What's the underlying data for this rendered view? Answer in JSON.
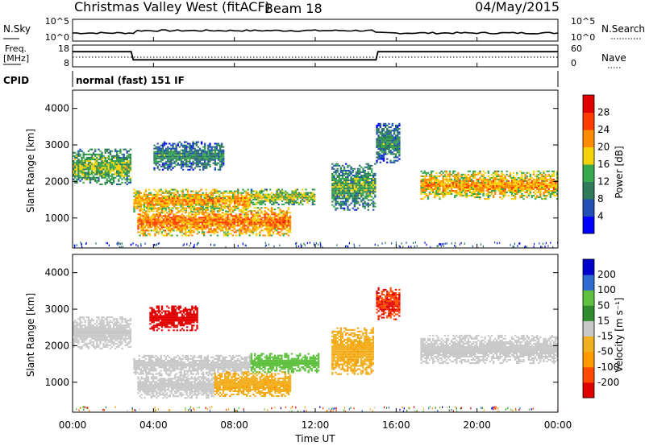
{
  "header": {
    "radar": "Christmas Valley West (fitACF)",
    "beam": "Beam 18",
    "date": "04/May/2015"
  },
  "top_panels": {
    "nsky_label": "N.Sky",
    "nsky_ticks": [
      "10^5",
      "10^0"
    ],
    "nsearch_label": "N.Search",
    "nsearch_ticks": [
      "10^5",
      "10^0"
    ],
    "freq_label_1": "Freq.",
    "freq_label_2": "[MHz]",
    "freq_ticks": [
      "18",
      "8"
    ],
    "nave_label": "Nave",
    "nave_ticks": [
      "60",
      "0"
    ],
    "cpid_label": "CPID",
    "cpid_value": "normal (fast) 151 IF"
  },
  "chart_data": [
    {
      "type": "heatmap",
      "name": "power",
      "ylabel": "Slant Range [km]",
      "yticks": [
        "4000",
        "3000",
        "2000",
        "1000"
      ],
      "ylim": [
        180,
        4500
      ],
      "colorbar_label": "Power [dB]",
      "colorbar_ticks": [
        "28",
        "24",
        "20",
        "16",
        "12",
        "8",
        "4"
      ],
      "colorbar_colors": [
        "#0000ff",
        "#2251b5",
        "#2f7a5a",
        "#38a84c",
        "#f5d20a",
        "#ff8c00",
        "#ff3b00",
        "#e00000"
      ],
      "bands": [
        {
          "t0": 0.0,
          "t1": 2.9,
          "r0": 1900,
          "r1": 2900,
          "level": 14
        },
        {
          "t0": 3.0,
          "t1": 8.8,
          "r0": 1150,
          "r1": 1800,
          "level": 20
        },
        {
          "t0": 3.2,
          "t1": 10.8,
          "r0": 500,
          "r1": 1300,
          "level": 22
        },
        {
          "t0": 4.0,
          "t1": 7.5,
          "r0": 2300,
          "r1": 3100,
          "level": 10
        },
        {
          "t0": 8.8,
          "t1": 12.0,
          "r0": 1350,
          "r1": 1800,
          "level": 16
        },
        {
          "t0": 12.8,
          "t1": 15.0,
          "r0": 1200,
          "r1": 2500,
          "level": 12
        },
        {
          "t0": 15.0,
          "t1": 16.2,
          "r0": 2500,
          "r1": 3600,
          "level": 10
        },
        {
          "t0": 17.2,
          "t1": 24.0,
          "r0": 1500,
          "r1": 2300,
          "level": 20
        }
      ]
    },
    {
      "type": "heatmap",
      "name": "velocity",
      "ylabel": "Slant Range [km]",
      "yticks": [
        "4000",
        "3000",
        "2000",
        "1000"
      ],
      "ylim": [
        180,
        4500
      ],
      "colorbar_label": "Velocity [m s⁻¹]",
      "colorbar_ticks": [
        "200",
        "100",
        "50",
        "15",
        "-15",
        "-50",
        "-100",
        "-200"
      ],
      "colorbar_colors": [
        "#e00000",
        "#ff4a00",
        "#ff9a00",
        "#f0b020",
        "#c8c8c8",
        "#2e8b2e",
        "#60c040",
        "#2d6bd0",
        "#0000cc"
      ],
      "bands": [
        {
          "t0": 0.0,
          "t1": 2.9,
          "r0": 1900,
          "r1": 2800,
          "v": 0
        },
        {
          "t0": 3.0,
          "t1": 8.8,
          "r0": 1200,
          "r1": 1750,
          "v": 0
        },
        {
          "t0": 3.2,
          "t1": 7.0,
          "r0": 550,
          "r1": 1250,
          "v": 0
        },
        {
          "t0": 7.0,
          "t1": 10.8,
          "r0": 600,
          "r1": 1300,
          "v": -40
        },
        {
          "t0": 3.8,
          "t1": 6.2,
          "r0": 2400,
          "r1": 3100,
          "v": -220
        },
        {
          "t0": 8.8,
          "t1": 12.2,
          "r0": 1250,
          "r1": 1800,
          "v": 80
        },
        {
          "t0": 12.8,
          "t1": 14.9,
          "r0": 1200,
          "r1": 2500,
          "v": -40
        },
        {
          "t0": 15.0,
          "t1": 16.2,
          "r0": 2700,
          "r1": 3600,
          "v": -200
        },
        {
          "t0": 17.2,
          "t1": 24.0,
          "r0": 1500,
          "r1": 2300,
          "v": 0
        }
      ]
    }
  ],
  "x_axis": {
    "ticks": [
      "00:00",
      "04:00",
      "08:00",
      "12:00",
      "16:00",
      "20:00",
      "00:00"
    ],
    "label": "Time UT",
    "range_hours": [
      0,
      24
    ]
  },
  "freq_series": [
    {
      "t": 0.0,
      "mhz": 15.0
    },
    {
      "t": 2.9,
      "mhz": 15.0
    },
    {
      "t": 3.0,
      "mhz": 10.8
    },
    {
      "t": 15.0,
      "mhz": 10.8
    },
    {
      "t": 15.1,
      "mhz": 15.0
    },
    {
      "t": 24.0,
      "mhz": 15.0
    }
  ]
}
